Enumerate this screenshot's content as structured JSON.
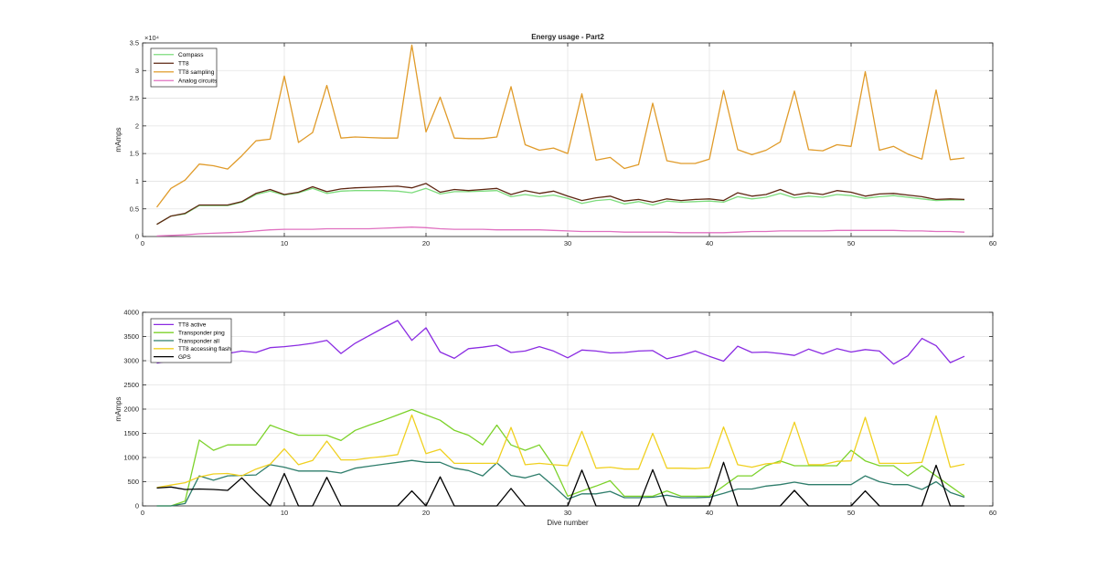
{
  "chart_data": [
    {
      "type": "line",
      "title": "Energy usage - Part2",
      "xlabel": "",
      "ylabel": "mAmps",
      "exponent_label": "×10⁴",
      "xlim": [
        0,
        60
      ],
      "ylim": [
        0,
        35000
      ],
      "xticks": [
        0,
        10,
        20,
        30,
        40,
        50,
        60
      ],
      "yticks": [
        0,
        5000,
        10000,
        15000,
        20000,
        25000,
        30000,
        35000
      ],
      "ytick_labels": [
        "0",
        "0.5",
        "1",
        "1.5",
        "2",
        "2.5",
        "3",
        "3.5"
      ],
      "grid": true,
      "legend_position": "top-left",
      "x": [
        1,
        2,
        3,
        4,
        5,
        6,
        7,
        8,
        9,
        10,
        11,
        12,
        13,
        14,
        15,
        16,
        17,
        18,
        19,
        20,
        21,
        22,
        23,
        24,
        25,
        26,
        27,
        28,
        29,
        30,
        31,
        32,
        33,
        34,
        35,
        36,
        37,
        38,
        39,
        40,
        41,
        42,
        43,
        44,
        45,
        46,
        47,
        48,
        49,
        50,
        51,
        52,
        53,
        54,
        55,
        56,
        57,
        58
      ],
      "series": [
        {
          "name": "Compass",
          "color": "#7ddc7d",
          "values": [
            2200,
            3700,
            4100,
            5600,
            5600,
            5600,
            6200,
            7600,
            8200,
            7500,
            7900,
            8700,
            7800,
            8200,
            8300,
            8300,
            8300,
            8200,
            7900,
            8700,
            7700,
            8100,
            8100,
            8200,
            8300,
            7200,
            7600,
            7200,
            7500,
            6900,
            6000,
            6500,
            6700,
            5900,
            6300,
            5700,
            6400,
            6200,
            6300,
            6400,
            6200,
            7200,
            6800,
            7100,
            7800,
            7000,
            7300,
            7100,
            7600,
            7400,
            6900,
            7200,
            7400,
            7100,
            6800,
            6500,
            6600,
            6600
          ]
        },
        {
          "name": "TT8",
          "color": "#5e2612",
          "values": [
            2200,
            3700,
            4200,
            5700,
            5700,
            5700,
            6300,
            7800,
            8500,
            7600,
            8000,
            9000,
            8100,
            8600,
            8800,
            8900,
            9000,
            9100,
            8800,
            9600,
            8000,
            8500,
            8300,
            8500,
            8700,
            7600,
            8300,
            7800,
            8200,
            7300,
            6500,
            7000,
            7300,
            6400,
            6700,
            6200,
            6800,
            6500,
            6700,
            6800,
            6500,
            7900,
            7300,
            7600,
            8500,
            7500,
            7900,
            7600,
            8300,
            8000,
            7300,
            7700,
            7800,
            7500,
            7200,
            6700,
            6800,
            6700
          ]
        },
        {
          "name": "TT8 sampling",
          "color": "#e09b2a",
          "values": [
            5300,
            8700,
            10200,
            13100,
            12800,
            12200,
            14600,
            17300,
            17600,
            29000,
            17000,
            18800,
            27300,
            17800,
            18000,
            17900,
            17800,
            17800,
            34600,
            18900,
            25200,
            17800,
            17700,
            17700,
            18000,
            27100,
            16600,
            15600,
            16000,
            15000,
            25800,
            13800,
            14300,
            12300,
            13000,
            24100,
            13700,
            13200,
            13200,
            14000,
            26400,
            15700,
            14800,
            15600,
            17100,
            26300,
            15700,
            15500,
            16600,
            16300,
            29800,
            15600,
            16300,
            14900,
            14000,
            26500,
            13900,
            14200
          ]
        },
        {
          "name": "Analog circuits",
          "color": "#e070c0",
          "values": [
            100,
            200,
            300,
            500,
            600,
            700,
            800,
            1000,
            1200,
            1300,
            1300,
            1300,
            1400,
            1400,
            1400,
            1400,
            1500,
            1600,
            1700,
            1600,
            1400,
            1300,
            1300,
            1300,
            1200,
            1200,
            1200,
            1200,
            1100,
            1000,
            900,
            900,
            900,
            800,
            800,
            800,
            800,
            700,
            700,
            700,
            700,
            800,
            900,
            900,
            1000,
            1000,
            1000,
            1000,
            1100,
            1100,
            1100,
            1100,
            1100,
            1000,
            1000,
            900,
            900,
            800
          ]
        }
      ]
    },
    {
      "type": "line",
      "title": "",
      "xlabel": "Dive number",
      "ylabel": "mAmps",
      "xlim": [
        0,
        60
      ],
      "ylim": [
        0,
        4000
      ],
      "xticks": [
        0,
        10,
        20,
        30,
        40,
        50,
        60
      ],
      "yticks": [
        0,
        500,
        1000,
        1500,
        2000,
        2500,
        3000,
        3500,
        4000
      ],
      "ytick_labels": [
        "0",
        "500",
        "1000",
        "1500",
        "2000",
        "2500",
        "3000",
        "3500",
        "4000"
      ],
      "grid": true,
      "legend_position": "top-left",
      "x": [
        1,
        2,
        3,
        4,
        5,
        6,
        7,
        8,
        9,
        10,
        11,
        12,
        13,
        14,
        15,
        16,
        17,
        18,
        19,
        20,
        21,
        22,
        23,
        24,
        25,
        26,
        27,
        28,
        29,
        30,
        31,
        32,
        33,
        34,
        35,
        36,
        37,
        38,
        39,
        40,
        41,
        42,
        43,
        44,
        45,
        46,
        47,
        48,
        49,
        50,
        51,
        52,
        53,
        54,
        55,
        56,
        57,
        58
      ],
      "series": [
        {
          "name": "TT8 active",
          "color": "#8a2be2",
          "values": [
            2950,
            3000,
            3050,
            3100,
            3100,
            3150,
            3200,
            3170,
            3270,
            3290,
            3320,
            3360,
            3420,
            3150,
            3360,
            3520,
            3680,
            3830,
            3420,
            3680,
            3180,
            3050,
            3250,
            3280,
            3320,
            3170,
            3200,
            3290,
            3200,
            3060,
            3220,
            3200,
            3160,
            3170,
            3200,
            3210,
            3040,
            3110,
            3200,
            3090,
            2990,
            3300,
            3170,
            3180,
            3150,
            3110,
            3240,
            3140,
            3250,
            3180,
            3230,
            3200,
            2930,
            3100,
            3460,
            3310,
            2960,
            3090
          ]
        },
        {
          "name": "Transponder ping",
          "color": "#7cd22a",
          "values": [
            0,
            0,
            100,
            1360,
            1150,
            1260,
            1260,
            1260,
            1670,
            1560,
            1460,
            1460,
            1460,
            1350,
            1560,
            1670,
            1770,
            1880,
            1990,
            1880,
            1770,
            1560,
            1460,
            1260,
            1670,
            1260,
            1150,
            1260,
            830,
            200,
            310,
            410,
            520,
            200,
            200,
            200,
            310,
            200,
            200,
            200,
            410,
            620,
            620,
            830,
            930,
            830,
            830,
            830,
            830,
            1150,
            930,
            830,
            830,
            620,
            830,
            620,
            410,
            200
          ]
        },
        {
          "name": "Transponder all",
          "color": "#2e7d6b",
          "values": [
            0,
            0,
            50,
            620,
            530,
            620,
            630,
            640,
            850,
            800,
            720,
            720,
            720,
            680,
            780,
            820,
            860,
            900,
            940,
            900,
            900,
            780,
            730,
            620,
            890,
            630,
            580,
            660,
            410,
            140,
            250,
            250,
            300,
            170,
            170,
            180,
            220,
            170,
            170,
            180,
            260,
            350,
            350,
            410,
            440,
            490,
            440,
            440,
            440,
            440,
            620,
            500,
            440,
            440,
            340,
            500,
            280,
            180
          ]
        },
        {
          "name": "TT8 accessing flash",
          "color": "#f0d020",
          "values": [
            380,
            430,
            480,
            600,
            660,
            670,
            620,
            760,
            860,
            1180,
            850,
            940,
            1340,
            950,
            950,
            990,
            1020,
            1060,
            1880,
            1080,
            1170,
            880,
            880,
            880,
            880,
            1620,
            850,
            880,
            850,
            830,
            1540,
            780,
            800,
            760,
            760,
            1500,
            780,
            780,
            770,
            790,
            1630,
            850,
            800,
            870,
            890,
            1730,
            850,
            850,
            920,
            930,
            1830,
            880,
            880,
            880,
            900,
            1860,
            800,
            860
          ]
        },
        {
          "name": "GPS",
          "color": "#000000",
          "values": [
            370,
            390,
            340,
            350,
            340,
            320,
            580,
            280,
            0,
            670,
            0,
            0,
            590,
            0,
            0,
            0,
            0,
            0,
            310,
            0,
            600,
            0,
            0,
            0,
            0,
            360,
            0,
            0,
            0,
            0,
            740,
            0,
            0,
            0,
            0,
            750,
            0,
            0,
            0,
            0,
            900,
            0,
            0,
            0,
            0,
            320,
            0,
            0,
            0,
            0,
            310,
            0,
            0,
            0,
            0,
            840,
            0,
            0
          ]
        }
      ]
    }
  ]
}
